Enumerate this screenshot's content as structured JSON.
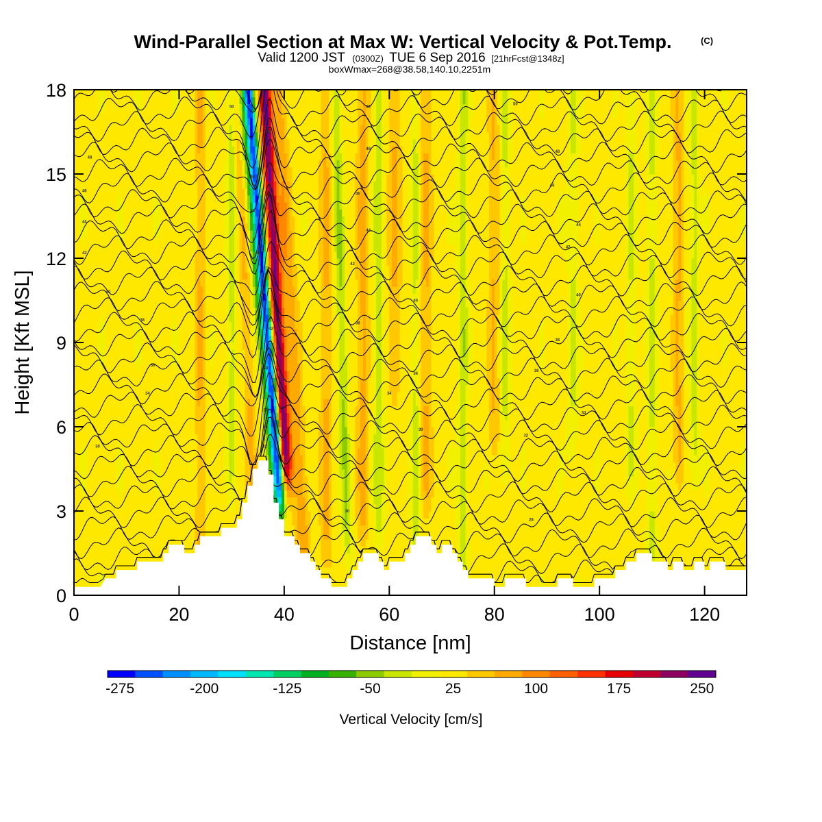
{
  "title": {
    "main": "Wind-Parallel Section at Max W: Vertical Velocity & Pot.Temp.",
    "tag": "(C)",
    "subtitle_a": "Valid 1200 JST",
    "subtitle_b": "(0300Z)",
    "subtitle_c": "TUE 6 Sep 2016",
    "subtitle_d": "[21hrFcst@1348z]",
    "subtitle2": "boxWmax=268@38.58,140.10,2251m"
  },
  "chart_data": {
    "type": "heatmap",
    "xlabel": "Distance [nm]",
    "ylabel": "Height [Kft MSL]",
    "xlim": [
      0,
      128
    ],
    "ylim": [
      0,
      18
    ],
    "xticks": [
      0,
      20,
      40,
      60,
      80,
      100,
      120
    ],
    "yticks": [
      0,
      3,
      6,
      9,
      12,
      15,
      18
    ],
    "colorbar": {
      "title": "Vertical Velocity [cm/s]",
      "labels": [
        "-275",
        "-200",
        "-125",
        "-50",
        "25",
        "100",
        "175",
        "250"
      ],
      "colors": [
        "#0000ff",
        "#0050ff",
        "#0090ff",
        "#00b8ff",
        "#00e0ff",
        "#00e6b0",
        "#00d060",
        "#00b020",
        "#38b000",
        "#8ccc00",
        "#c8e600",
        "#f0f000",
        "#ffe800",
        "#ffc800",
        "#ffaa00",
        "#ff8800",
        "#ff6000",
        "#ff3000",
        "#e80000",
        "#c00030",
        "#8c0060",
        "#600090"
      ]
    },
    "terrain": [
      [
        0,
        0.3
      ],
      [
        5,
        0.3
      ],
      [
        6,
        0.6
      ],
      [
        8,
        0.6
      ],
      [
        8,
        0.9
      ],
      [
        12,
        0.9
      ],
      [
        12,
        1.2
      ],
      [
        17,
        1.2
      ],
      [
        17,
        1.5
      ],
      [
        18,
        1.5
      ],
      [
        18,
        1.8
      ],
      [
        21,
        1.8
      ],
      [
        21,
        1.5
      ],
      [
        23,
        1.5
      ],
      [
        23,
        1.8
      ],
      [
        24,
        1.8
      ],
      [
        24,
        2.1
      ],
      [
        28,
        2.1
      ],
      [
        28,
        2.4
      ],
      [
        31,
        2.4
      ],
      [
        31,
        2.7
      ],
      [
        32,
        2.7
      ],
      [
        32,
        3.3
      ],
      [
        33,
        3.3
      ],
      [
        33,
        3.9
      ],
      [
        34,
        3.9
      ],
      [
        34,
        4.5
      ],
      [
        35,
        4.5
      ],
      [
        35,
        4.8
      ],
      [
        37,
        4.8
      ],
      [
        37,
        4.3
      ],
      [
        38,
        4.3
      ],
      [
        38,
        3.3
      ],
      [
        39,
        3.3
      ],
      [
        39,
        2.7
      ],
      [
        40,
        2.7
      ],
      [
        40,
        2.1
      ],
      [
        42,
        2.1
      ],
      [
        42,
        1.8
      ],
      [
        43,
        1.8
      ],
      [
        43,
        1.5
      ],
      [
        45,
        1.5
      ],
      [
        45,
        1.2
      ],
      [
        46,
        1.2
      ],
      [
        46,
        0.9
      ],
      [
        47,
        0.9
      ],
      [
        47,
        0.6
      ],
      [
        49,
        0.6
      ],
      [
        49,
        0.3
      ],
      [
        52,
        0.3
      ],
      [
        52,
        0.6
      ],
      [
        53,
        0.6
      ],
      [
        53,
        0.9
      ],
      [
        54,
        0.9
      ],
      [
        54,
        1.2
      ],
      [
        55,
        1.2
      ],
      [
        55,
        1.5
      ],
      [
        58,
        1.5
      ],
      [
        58,
        1.2
      ],
      [
        59,
        1.2
      ],
      [
        59,
        0.9
      ],
      [
        60,
        0.9
      ],
      [
        60,
        1.2
      ],
      [
        63,
        1.2
      ],
      [
        63,
        1.5
      ],
      [
        64,
        1.5
      ],
      [
        64,
        1.8
      ],
      [
        65,
        1.8
      ],
      [
        65,
        2.1
      ],
      [
        68,
        2.1
      ],
      [
        68,
        1.8
      ],
      [
        69,
        1.8
      ],
      [
        69,
        1.5
      ],
      [
        70,
        1.5
      ],
      [
        70,
        1.8
      ],
      [
        72,
        1.8
      ],
      [
        72,
        1.5
      ],
      [
        73,
        1.5
      ],
      [
        73,
        1.2
      ],
      [
        74,
        1.2
      ],
      [
        74,
        0.9
      ],
      [
        75,
        0.9
      ],
      [
        75,
        0.6
      ],
      [
        80,
        0.6
      ],
      [
        80,
        0.3
      ],
      [
        82,
        0.3
      ],
      [
        82,
        0.6
      ],
      [
        86,
        0.6
      ],
      [
        86,
        0.3
      ],
      [
        92,
        0.3
      ],
      [
        92,
        0.6
      ],
      [
        95,
        0.6
      ],
      [
        95,
        0.3
      ],
      [
        99,
        0.3
      ],
      [
        99,
        0.6
      ],
      [
        103,
        0.6
      ],
      [
        103,
        0.9
      ],
      [
        105,
        0.9
      ],
      [
        105,
        1.2
      ],
      [
        107,
        1.2
      ],
      [
        107,
        1.5
      ],
      [
        110,
        1.5
      ],
      [
        110,
        1.2
      ],
      [
        113,
        1.2
      ],
      [
        113,
        0.9
      ],
      [
        114,
        0.9
      ],
      [
        114,
        1.2
      ],
      [
        116,
        1.2
      ],
      [
        116,
        0.9
      ],
      [
        118,
        0.9
      ],
      [
        118,
        1.2
      ],
      [
        120,
        1.2
      ],
      [
        120,
        0.9
      ],
      [
        121,
        0.9
      ],
      [
        121,
        1.2
      ],
      [
        124,
        1.2
      ],
      [
        124,
        0.9
      ],
      [
        128,
        0.9
      ],
      [
        128,
        0
      ]
    ],
    "w_features": [
      {
        "x": 37.0,
        "w": -270,
        "sx": 0.9,
        "slope": -0.42,
        "base": 4.2
      },
      {
        "x": 39.0,
        "w": 220,
        "sx": 1.1,
        "slope": -0.3,
        "base": 5.0
      },
      {
        "x": 35.8,
        "w": -90,
        "sx": 1.0,
        "slope": -0.45,
        "base": 3.5
      },
      {
        "x": 41.5,
        "w": 60,
        "sx": 1.4,
        "slope": -0.3,
        "base": 2.0
      },
      {
        "x": 33.0,
        "w": 45,
        "sx": 1.0,
        "slope": -0.2,
        "base": 1.5
      },
      {
        "x": 30.0,
        "w": -45,
        "sx": 0.9,
        "slope": 0,
        "base": 5.0
      },
      {
        "x": 24.0,
        "w": 45,
        "sx": 0.9,
        "slope": 0,
        "base": 2.0
      },
      {
        "x": 48.0,
        "w": 45,
        "sx": 1.2,
        "slope": 0,
        "base": 2.0
      },
      {
        "x": 51.0,
        "w": -60,
        "sx": 1.0,
        "slope": -0.15,
        "base": 2.5
      },
      {
        "x": 55.0,
        "w": 50,
        "sx": 1.2,
        "slope": 0,
        "base": 3.0
      },
      {
        "x": 58.0,
        "w": -50,
        "sx": 1.0,
        "slope": 0,
        "base": 3.0
      },
      {
        "x": 61.0,
        "w": 45,
        "sx": 1.3,
        "slope": 0,
        "base": 8.0
      },
      {
        "x": 65.0,
        "w": -40,
        "sx": 0.9,
        "slope": 0,
        "base": 1.5
      },
      {
        "x": 67.0,
        "w": 45,
        "sx": 1.1,
        "slope": 0,
        "base": 4.0
      },
      {
        "x": 74.0,
        "w": -55,
        "sx": 0.9,
        "slope": 0,
        "base": 2.0
      },
      {
        "x": 80.0,
        "w": 45,
        "sx": 1.1,
        "slope": 0,
        "base": 6.0
      },
      {
        "x": 82.0,
        "w": -40,
        "sx": 1.0,
        "slope": 0,
        "base": 5.0
      },
      {
        "x": 95.0,
        "w": -35,
        "sx": 1.0,
        "slope": 0,
        "base": 6.0
      },
      {
        "x": 106.0,
        "w": -35,
        "sx": 1.0,
        "slope": 0,
        "base": 5.0
      },
      {
        "x": 110.0,
        "w": -40,
        "sx": 1.0,
        "slope": 0,
        "base": 2.0
      },
      {
        "x": 115.0,
        "w": 45,
        "sx": 1.0,
        "slope": 0,
        "base": 5.0
      },
      {
        "x": 118.0,
        "w": -40,
        "sx": 0.9,
        "slope": 0,
        "base": 5.0
      }
    ],
    "contour_labels": [
      {
        "x": 4.5,
        "y": 5.3,
        "text": "30"
      },
      {
        "x": 14,
        "y": 7.2,
        "text": "34"
      },
      {
        "x": 15,
        "y": 8.2,
        "text": "36"
      },
      {
        "x": 13,
        "y": 9.8,
        "text": "38"
      },
      {
        "x": 6.5,
        "y": 10.8,
        "text": "40"
      },
      {
        "x": 2,
        "y": 12.2,
        "text": "42"
      },
      {
        "x": 2,
        "y": 13.3,
        "text": "44"
      },
      {
        "x": 2,
        "y": 14.4,
        "text": "46"
      },
      {
        "x": 3,
        "y": 15.6,
        "text": "48"
      },
      {
        "x": 30,
        "y": 17.4,
        "text": "50"
      },
      {
        "x": 52,
        "y": 3.0,
        "text": "30"
      },
      {
        "x": 66,
        "y": 5.9,
        "text": "30"
      },
      {
        "x": 60,
        "y": 7.2,
        "text": "34"
      },
      {
        "x": 65,
        "y": 7.9,
        "text": "36"
      },
      {
        "x": 54,
        "y": 9.7,
        "text": "38"
      },
      {
        "x": 65,
        "y": 10.5,
        "text": "40"
      },
      {
        "x": 53,
        "y": 11.8,
        "text": "42"
      },
      {
        "x": 56,
        "y": 13.0,
        "text": "44"
      },
      {
        "x": 54,
        "y": 14.3,
        "text": "46"
      },
      {
        "x": 56,
        "y": 15.9,
        "text": "48"
      },
      {
        "x": 56,
        "y": 17.4,
        "text": "50"
      },
      {
        "x": 87,
        "y": 2.7,
        "text": "28"
      },
      {
        "x": 86,
        "y": 5.7,
        "text": "32"
      },
      {
        "x": 97,
        "y": 6.5,
        "text": "34"
      },
      {
        "x": 88,
        "y": 8.0,
        "text": "36"
      },
      {
        "x": 92,
        "y": 9.1,
        "text": "38"
      },
      {
        "x": 96,
        "y": 10.7,
        "text": "40"
      },
      {
        "x": 94,
        "y": 12.4,
        "text": "42"
      },
      {
        "x": 96,
        "y": 13.2,
        "text": "44"
      },
      {
        "x": 91,
        "y": 14.6,
        "text": "46"
      },
      {
        "x": 92,
        "y": 15.8,
        "text": "48"
      },
      {
        "x": 84,
        "y": 17.5,
        "text": "50"
      },
      {
        "x": 36.3,
        "y": 5.3,
        "text": "32"
      },
      {
        "x": 36.4,
        "y": 6.0,
        "text": "34"
      },
      {
        "x": 36.5,
        "y": 6.6,
        "text": "36"
      },
      {
        "x": 36.5,
        "y": 8.1,
        "text": "38"
      },
      {
        "x": 37.5,
        "y": 9.5,
        "text": "42"
      },
      {
        "x": 35,
        "y": 12.2,
        "text": "42"
      },
      {
        "x": 34,
        "y": 13.7,
        "text": "44"
      },
      {
        "x": 34,
        "y": 14.9,
        "text": "46"
      },
      {
        "x": 37,
        "y": 16.5,
        "text": "48"
      }
    ]
  }
}
